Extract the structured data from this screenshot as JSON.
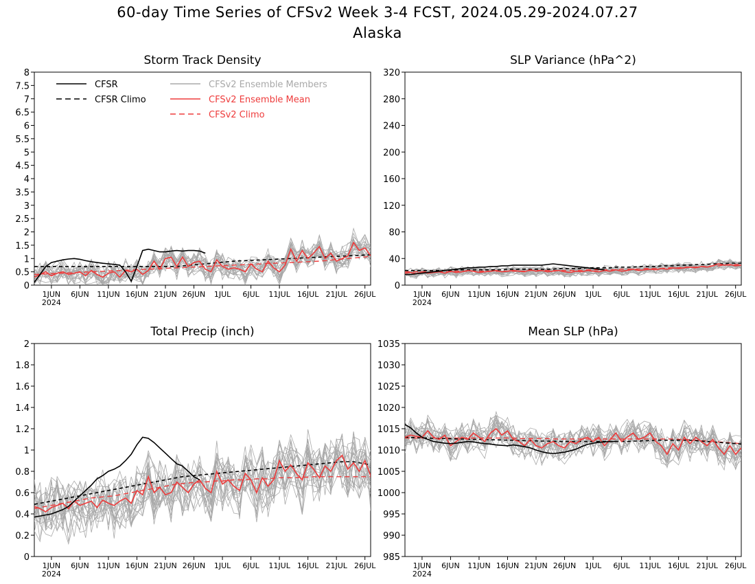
{
  "title": "60-day Time Series of CFSv2 Week 3-4 FCST, 2024.05.29-2024.07.27",
  "subtitle": "Alaska",
  "colors": {
    "cfsr": "#000000",
    "members": "#a8a8a8",
    "ens_mean": "#ee3b3b",
    "axis": "#000000"
  },
  "legend": [
    {
      "label": "CFSR",
      "style": "solid",
      "color": "#000000"
    },
    {
      "label": "CFSR Climo",
      "style": "dashed",
      "color": "#000000"
    },
    {
      "label": "CFSv2 Ensemble Members",
      "style": "solid",
      "color": "#a8a8a8"
    },
    {
      "label": "CFSv2 Ensemble Mean",
      "style": "solid",
      "color": "#ee3b3b"
    },
    {
      "label": "CFSv2 Climo",
      "style": "dashed",
      "color": "#ee3b3b"
    }
  ],
  "x_ticks": [
    "1JUN",
    "6JUN",
    "11JUN",
    "16JUN",
    "21JUN",
    "26JUN",
    "1JUL",
    "6JUL",
    "11JUL",
    "16JUL",
    "21JUL",
    "26JUL"
  ],
  "x_year_label": "2024",
  "chart_data": [
    {
      "type": "line",
      "title": "Storm Track Density",
      "x": {
        "start": "2024-05-29",
        "end": "2024-07-27"
      },
      "ylim": [
        0,
        8
      ],
      "yticks": [
        "0",
        "0.5",
        "1",
        "1.5",
        "2",
        "2.5",
        "3",
        "3.5",
        "4",
        "4.5",
        "5",
        "5.5",
        "6",
        "6.5",
        "7",
        "7.5",
        "8"
      ],
      "ytick_values": [
        0,
        0.5,
        1,
        1.5,
        2,
        2.5,
        3,
        3.5,
        4,
        4.5,
        5,
        5.5,
        6,
        6.5,
        7,
        7.5,
        8
      ],
      "cfsr": [
        0.1,
        0.4,
        0.7,
        0.85,
        0.9,
        0.95,
        0.98,
        1.0,
        0.97,
        0.92,
        0.88,
        0.85,
        0.82,
        0.8,
        0.78,
        0.75,
        0.5,
        0.15,
        0.7,
        1.3,
        1.35,
        1.3,
        1.25,
        1.25,
        1.28,
        1.3,
        1.28,
        1.3,
        1.3,
        1.28,
        1.2
      ],
      "cfsr_climo": [
        0.7,
        0.7,
        0.7,
        0.7,
        0.7,
        0.7,
        0.7,
        0.7,
        0.7,
        0.7,
        0.7,
        0.7,
        0.7,
        0.7,
        0.7,
        0.7,
        0.7,
        0.7,
        0.7,
        0.7,
        0.7,
        0.7,
        0.7,
        0.7,
        0.7,
        0.7,
        0.72,
        0.74,
        0.76,
        0.78,
        0.8,
        0.82,
        0.84,
        0.86,
        0.88,
        0.9,
        0.91,
        0.92,
        0.93,
        0.94,
        0.95,
        0.96,
        0.97,
        0.98,
        0.99,
        1.0,
        1.01,
        1.02,
        1.03,
        1.04,
        1.05,
        1.06,
        1.07,
        1.08,
        1.09,
        1.1,
        1.11,
        1.12,
        1.13,
        1.14
      ],
      "ens_mean": [
        0.3,
        0.4,
        0.5,
        0.35,
        0.45,
        0.5,
        0.4,
        0.45,
        0.5,
        0.35,
        0.55,
        0.4,
        0.3,
        0.45,
        0.5,
        0.3,
        0.55,
        0.5,
        0.6,
        0.4,
        0.55,
        0.9,
        0.6,
        1.0,
        1.05,
        0.7,
        1.05,
        0.7,
        0.85,
        0.9,
        0.6,
        0.5,
        0.95,
        0.7,
        0.6,
        0.65,
        0.6,
        0.5,
        0.8,
        0.6,
        0.5,
        0.9,
        0.65,
        0.5,
        0.75,
        1.35,
        0.9,
        1.3,
        1.0,
        1.2,
        1.45,
        1.0,
        1.2,
        0.9,
        1.0,
        1.1,
        1.6,
        1.3,
        1.4,
        1.1
      ],
      "cfsv2_climo": [
        0.4,
        0.41,
        0.42,
        0.43,
        0.44,
        0.45,
        0.46,
        0.47,
        0.48,
        0.49,
        0.5,
        0.51,
        0.52,
        0.53,
        0.54,
        0.55,
        0.56,
        0.57,
        0.58,
        0.59,
        0.6,
        0.61,
        0.62,
        0.63,
        0.64,
        0.65,
        0.66,
        0.67,
        0.68,
        0.69,
        0.7,
        0.71,
        0.72,
        0.73,
        0.74,
        0.75,
        0.76,
        0.77,
        0.78,
        0.79,
        0.8,
        0.81,
        0.82,
        0.83,
        0.84,
        0.85,
        0.86,
        0.87,
        0.88,
        0.89,
        0.9,
        0.92,
        0.94,
        0.96,
        0.98,
        1.0,
        1.02,
        1.04,
        1.06,
        1.08
      ],
      "member_center": 0.75,
      "member_spread": 0.55
    },
    {
      "type": "line",
      "title": "SLP Variance (hPa^2)",
      "x": {
        "start": "2024-05-29",
        "end": "2024-07-27"
      },
      "ylim": [
        0,
        320
      ],
      "yticks": [
        "0",
        "40",
        "80",
        "120",
        "160",
        "200",
        "240",
        "280",
        "320"
      ],
      "ytick_values": [
        0,
        40,
        80,
        120,
        160,
        200,
        240,
        280,
        320
      ],
      "cfsr": [
        16,
        16,
        17,
        18,
        19,
        20,
        21,
        22,
        23,
        24,
        25,
        26,
        26,
        27,
        27,
        28,
        28,
        29,
        29,
        30,
        30,
        30,
        30,
        30,
        30,
        31,
        32,
        31,
        30,
        29,
        28,
        27,
        26,
        25,
        24,
        23
      ],
      "cfsr_climo": [
        22,
        22,
        22,
        22,
        22,
        22,
        22,
        22,
        22,
        23,
        23,
        23,
        23,
        23,
        23,
        23,
        23,
        23,
        24,
        24,
        24,
        24,
        24,
        24,
        24,
        24,
        24,
        25,
        25,
        25,
        25,
        25,
        26,
        26,
        26,
        26,
        26,
        27,
        27,
        27,
        27,
        28,
        28,
        28,
        28,
        29,
        29,
        29,
        30,
        30,
        30,
        31,
        31,
        31,
        32,
        32,
        32,
        33,
        33,
        33
      ],
      "ens_mean": [
        18,
        19,
        17,
        20,
        18,
        19,
        20,
        18,
        21,
        19,
        20,
        22,
        21,
        19,
        20,
        21,
        22,
        20,
        21,
        22,
        21,
        20,
        23,
        21,
        22,
        20,
        21,
        22,
        20,
        19,
        21,
        20,
        22,
        21,
        20,
        22,
        21,
        23,
        21,
        22,
        24,
        22,
        23,
        24,
        23,
        25,
        24,
        26,
        25,
        26,
        27,
        26,
        28,
        27,
        29,
        32,
        30,
        31,
        29,
        30
      ],
      "cfsv2_climo": [
        20,
        20,
        20,
        20,
        20,
        20,
        20,
        20,
        20,
        21,
        21,
        21,
        21,
        21,
        21,
        21,
        21,
        21,
        21,
        21,
        21,
        21,
        22,
        22,
        22,
        22,
        22,
        22,
        22,
        22,
        22,
        22,
        23,
        23,
        23,
        23,
        23,
        23,
        24,
        24,
        24,
        24,
        25,
        25,
        25,
        25,
        26,
        26,
        26,
        27,
        27,
        27,
        28,
        28,
        29,
        29,
        30,
        30,
        31,
        31
      ],
      "member_center": 24,
      "member_spread": 9
    },
    {
      "type": "line",
      "title": "Total Precip (inch)",
      "x": {
        "start": "2024-05-29",
        "end": "2024-07-27"
      },
      "ylim": [
        0,
        2
      ],
      "yticks": [
        "0",
        "0.2",
        "0.4",
        "0.6",
        "0.8",
        "1",
        "1.2",
        "1.4",
        "1.6",
        "1.8",
        "2"
      ],
      "ytick_values": [
        0,
        0.2,
        0.4,
        0.6,
        0.8,
        1.0,
        1.2,
        1.4,
        1.6,
        1.8,
        2.0
      ],
      "cfsr": [
        0.37,
        0.38,
        0.39,
        0.4,
        0.42,
        0.44,
        0.47,
        0.52,
        0.57,
        0.62,
        0.67,
        0.73,
        0.76,
        0.8,
        0.82,
        0.85,
        0.9,
        0.96,
        1.05,
        1.12,
        1.11,
        1.07,
        1.02,
        0.97,
        0.92,
        0.87,
        0.85,
        0.8,
        0.75,
        0.72
      ],
      "cfsr_climo": [
        0.49,
        0.5,
        0.51,
        0.52,
        0.53,
        0.54,
        0.55,
        0.56,
        0.57,
        0.58,
        0.59,
        0.6,
        0.61,
        0.62,
        0.63,
        0.64,
        0.65,
        0.66,
        0.67,
        0.68,
        0.69,
        0.7,
        0.71,
        0.72,
        0.73,
        0.74,
        0.75,
        0.755,
        0.76,
        0.765,
        0.77,
        0.775,
        0.78,
        0.785,
        0.79,
        0.795,
        0.8,
        0.805,
        0.81,
        0.815,
        0.82,
        0.825,
        0.83,
        0.835,
        0.84,
        0.845,
        0.85,
        0.855,
        0.86,
        0.865,
        0.87,
        0.875,
        0.88,
        0.885,
        0.89,
        0.89,
        0.89,
        0.88,
        0.87,
        0.86
      ],
      "ens_mean": [
        0.47,
        0.45,
        0.42,
        0.46,
        0.48,
        0.5,
        0.45,
        0.52,
        0.48,
        0.5,
        0.52,
        0.46,
        0.53,
        0.5,
        0.48,
        0.52,
        0.55,
        0.5,
        0.62,
        0.58,
        0.75,
        0.6,
        0.65,
        0.58,
        0.6,
        0.7,
        0.65,
        0.6,
        0.68,
        0.72,
        0.64,
        0.6,
        0.8,
        0.68,
        0.72,
        0.66,
        0.62,
        0.78,
        0.72,
        0.6,
        0.74,
        0.66,
        0.72,
        0.9,
        0.8,
        0.86,
        0.78,
        0.72,
        0.88,
        0.82,
        0.74,
        0.85,
        0.8,
        0.9,
        0.95,
        0.82,
        0.88,
        0.8,
        0.9,
        0.76
      ],
      "cfsv2_climo": [
        0.45,
        0.46,
        0.47,
        0.48,
        0.49,
        0.5,
        0.51,
        0.52,
        0.53,
        0.54,
        0.55,
        0.555,
        0.56,
        0.565,
        0.57,
        0.58,
        0.59,
        0.6,
        0.61,
        0.62,
        0.63,
        0.64,
        0.65,
        0.66,
        0.67,
        0.68,
        0.685,
        0.69,
        0.695,
        0.7,
        0.7,
        0.705,
        0.71,
        0.71,
        0.715,
        0.72,
        0.72,
        0.72,
        0.725,
        0.73,
        0.73,
        0.73,
        0.735,
        0.74,
        0.74,
        0.74,
        0.74,
        0.745,
        0.745,
        0.75,
        0.75,
        0.75,
        0.75,
        0.75,
        0.75,
        0.75,
        0.75,
        0.75,
        0.75,
        0.75
      ],
      "member_center": 0.65,
      "member_spread": 0.35
    },
    {
      "type": "line",
      "title": "Mean SLP (hPa)",
      "x": {
        "start": "2024-05-29",
        "end": "2024-07-27"
      },
      "ylim": [
        985,
        1035
      ],
      "yticks": [
        "985",
        "990",
        "995",
        "1000",
        "1005",
        "1010",
        "1015",
        "1020",
        "1025",
        "1030",
        "1035"
      ],
      "ytick_values": [
        985,
        990,
        995,
        1000,
        1005,
        1010,
        1015,
        1020,
        1025,
        1030,
        1035
      ],
      "cfsr": [
        1016,
        1015.2,
        1014,
        1013,
        1012.5,
        1012,
        1011.8,
        1011.6,
        1011.5,
        1011.6,
        1011.8,
        1012,
        1011.9,
        1011.7,
        1011.5,
        1011.4,
        1011.2,
        1011.1,
        1011.0,
        1011.2,
        1011.0,
        1010.8,
        1010.5,
        1010.0,
        1009.6,
        1009.3,
        1009.2,
        1009.3,
        1009.5,
        1009.8,
        1010.2,
        1010.8,
        1011.3,
        1011.6,
        1011.8,
        1011.9,
        1012.0,
        1012.0
      ],
      "cfsr_climo": [
        1013,
        1012.95,
        1012.9,
        1012.85,
        1012.8,
        1012.75,
        1012.7,
        1012.7,
        1012.65,
        1012.6,
        1012.6,
        1012.55,
        1012.5,
        1012.5,
        1012.45,
        1012.4,
        1012.4,
        1012.35,
        1012.3,
        1012.3,
        1012.25,
        1012.2,
        1012.2,
        1012.15,
        1012.1,
        1012.1,
        1012.05,
        1012.0,
        1012.0,
        1012.0,
        1012.0,
        1012.0,
        1012.0,
        1012.0,
        1012.0,
        1012.0,
        1012.0,
        1012.0,
        1012.0,
        1012.0,
        1012.1,
        1012.1,
        1012.2,
        1012.2,
        1012.3,
        1012.3,
        1012.3,
        1012.3,
        1012.3,
        1012.3,
        1012.3,
        1012.2,
        1012.1,
        1012.0,
        1011.9,
        1011.8,
        1011.7,
        1011.6,
        1011.5,
        1011.4
      ],
      "ens_mean": [
        1013,
        1013.5,
        1013.2,
        1013,
        1014.5,
        1013,
        1012.5,
        1013.5,
        1011,
        1012,
        1013,
        1012.5,
        1014,
        1013,
        1012,
        1014,
        1015,
        1013.5,
        1014.5,
        1012.5,
        1012,
        1011,
        1012.5,
        1011,
        1010.5,
        1011.5,
        1012,
        1011,
        1010.5,
        1012,
        1011.5,
        1012.5,
        1013,
        1012,
        1013,
        1011,
        1012.5,
        1014,
        1012,
        1013,
        1014,
        1012.5,
        1013,
        1014,
        1012,
        1011,
        1009,
        1011.5,
        1010,
        1013,
        1011.5,
        1013,
        1012,
        1011,
        1012.5,
        1010.5,
        1009,
        1011,
        1009,
        1010.5
      ],
      "cfsv2_climo": [
        1012.8,
        1012.8,
        1012.8,
        1012.8,
        1012.8,
        1012.8,
        1012.8,
        1012.8,
        1012.8,
        1012.8,
        1012.8,
        1012.8,
        1012.8,
        1012.8,
        1012.8,
        1012.8,
        1012.8,
        1012.8,
        1012.8,
        1012.8,
        1012.7,
        1012.7,
        1012.7,
        1012.7,
        1012.7,
        1012.7,
        1012.6,
        1012.6,
        1012.6,
        1012.6,
        1012.6,
        1012.6,
        1012.6,
        1012.6,
        1012.6,
        1012.6,
        1012.6,
        1012.6,
        1012.6,
        1012.6,
        1012.6,
        1012.6,
        1012.6,
        1012.6,
        1012.6,
        1012.6,
        1012.6,
        1012.6,
        1012.5,
        1012.5,
        1012.4,
        1012.3,
        1012.2,
        1012.1,
        1012.0,
        1011.9,
        1011.8,
        1011.7,
        1011.6,
        1011.5
      ],
      "member_center": 1012,
      "member_spread": 4.5
    }
  ]
}
